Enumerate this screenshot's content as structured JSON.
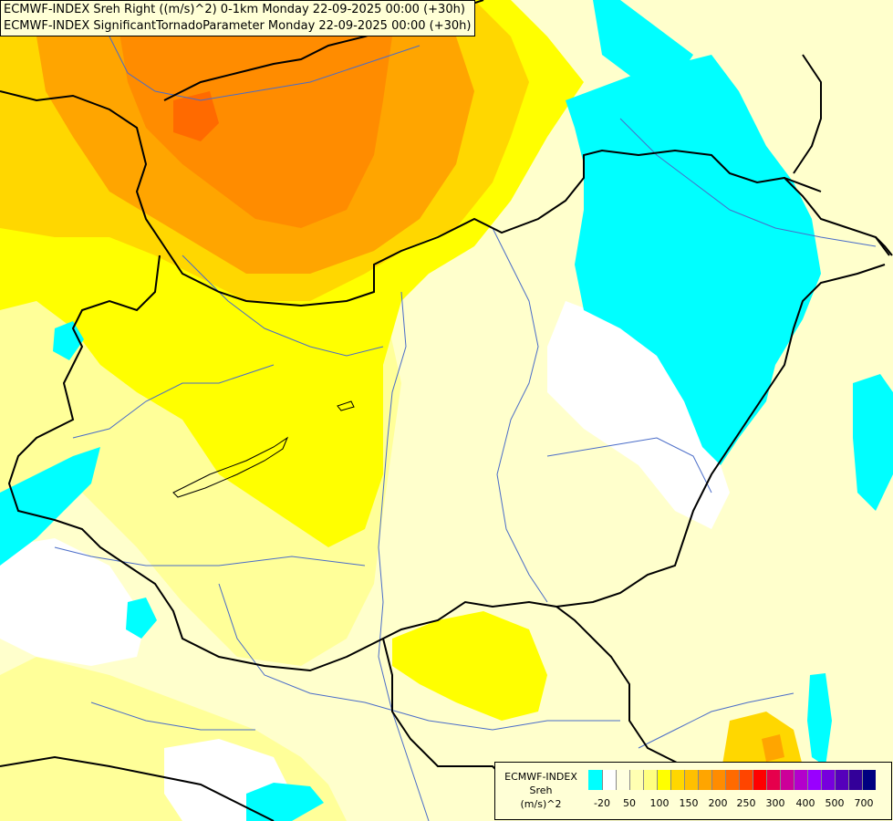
{
  "titles": {
    "line1": "ECMWF-INDEX Sreh Right ((m/s)^2) 0-1km Monday 22-09-2025 00:00 (+30h)",
    "line2": "ECMWF-INDEX SignificantTornadoParameter Monday 22-09-2025 00:00 (+30h)"
  },
  "legend": {
    "model": "ECMWF-INDEX",
    "variable": "Sreh",
    "unit": "(m/s)^2",
    "ticks": [
      "-20",
      "50",
      "100",
      "150",
      "200",
      "250",
      "300",
      "400",
      "500",
      "700"
    ],
    "colors": [
      "#00ffff",
      "#ffffff",
      "#ffffe0",
      "#ffffb2",
      "#ffff80",
      "#ffff00",
      "#ffd700",
      "#ffc000",
      "#ffa500",
      "#ff8c00",
      "#ff6a00",
      "#ff4500",
      "#ff0000",
      "#e6004c",
      "#cc0099",
      "#b300cc",
      "#9900ff",
      "#7700dd",
      "#5500bb",
      "#330099",
      "#000080"
    ]
  },
  "palette": {
    "cyan": "#00ffff",
    "white": "#ffffff",
    "pale": "#ffffcc",
    "light_yellow": "#ffff99",
    "yellow": "#ffff00",
    "gold": "#ffd700",
    "orange": "#ffa500",
    "dark_orange": "#ff8c00",
    "red_orange": "#ff6a00",
    "border_color": "#000000",
    "river_color": "#4a6cc8"
  }
}
